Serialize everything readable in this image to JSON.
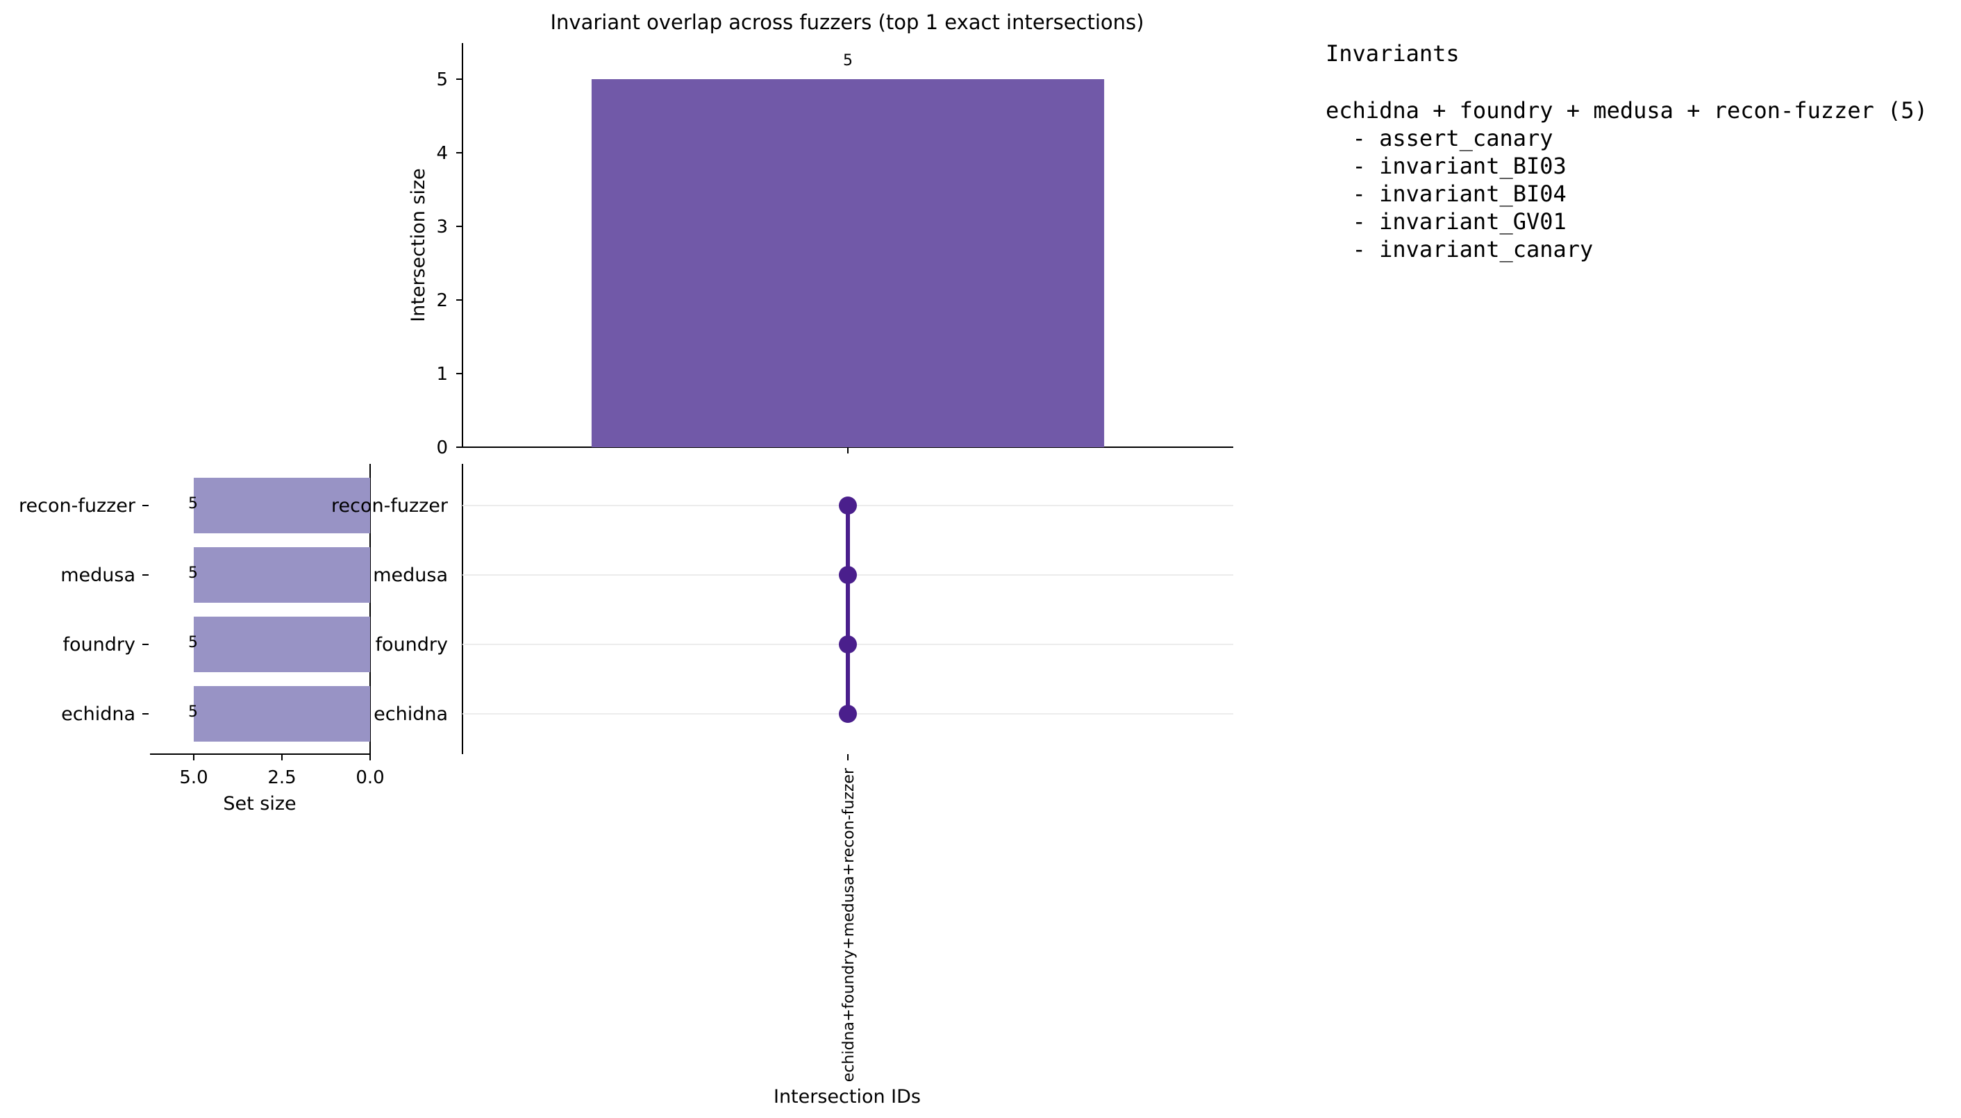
{
  "chart_data": {
    "type": "bar",
    "title": "Invariant overlap across fuzzers (top 1 exact intersections)",
    "intersections": {
      "ylabel": "Intersection size",
      "xlabel": "Intersection IDs",
      "ylim": [
        0,
        5.5
      ],
      "yticks": [
        0,
        1,
        2,
        3,
        4,
        5
      ],
      "categories": [
        "echidna+foundry+medusa+recon-fuzzer"
      ],
      "values": [
        5
      ],
      "data_labels": [
        "5"
      ],
      "color": "#7159a8"
    },
    "sets": {
      "xlabel": "Set size",
      "names": [
        "recon-fuzzer",
        "medusa",
        "foundry",
        "echidna"
      ],
      "values": [
        5,
        5,
        5,
        5
      ],
      "data_labels": [
        "5",
        "5",
        "5",
        "5"
      ],
      "xticks": [
        "5.0",
        "2.5",
        "0.0"
      ],
      "xlim": [
        6.25,
        0
      ],
      "color": "#9893c5"
    },
    "matrix": {
      "rows": [
        "recon-fuzzer",
        "medusa",
        "foundry",
        "echidna"
      ],
      "membership": [
        [
          true,
          true,
          true,
          true
        ]
      ],
      "dot_color": "#4a1f8c"
    },
    "legend_text": {
      "title": "Invariants",
      "group": "echidna + foundry + medusa + recon-fuzzer (5)",
      "items": [
        "  - assert_canary",
        "  - invariant_BI03",
        "  - invariant_BI04",
        "  - invariant_GV01",
        "  - invariant_canary"
      ]
    }
  }
}
